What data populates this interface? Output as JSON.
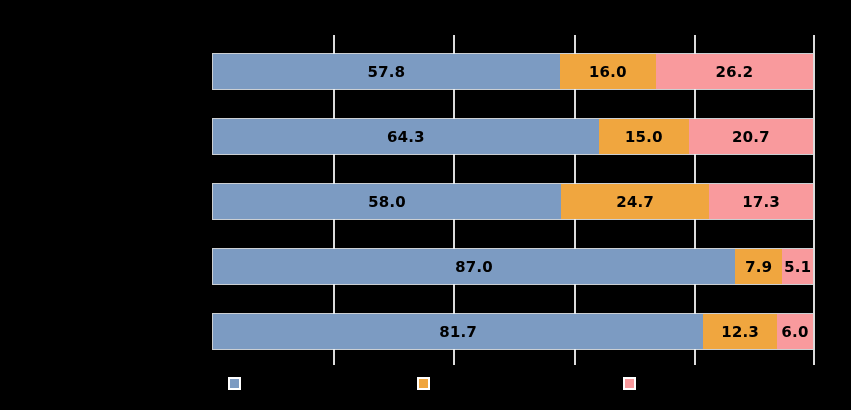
{
  "chart_data": {
    "type": "bar",
    "orientation": "horizontal",
    "stacked": true,
    "title": "",
    "xlabel": "",
    "ylabel": "",
    "xlim": [
      0,
      100
    ],
    "background_color": "#000000",
    "grid": true,
    "grid_color": "#DCDCDC",
    "gridlines_percent": [
      20,
      40,
      60,
      80,
      100
    ],
    "value_label_color": "#000000",
    "categories": [
      "",
      "",
      "",
      "",
      ""
    ],
    "series": [
      {
        "name": "blue",
        "color": "#7C9BC2",
        "values": [
          57.8,
          64.3,
          58.0,
          87.0,
          81.7
        ]
      },
      {
        "name": "orange",
        "color": "#F0A63F",
        "values": [
          16.0,
          15.0,
          24.7,
          7.9,
          12.3
        ]
      },
      {
        "name": "pink",
        "color": "#F99A9D",
        "values": [
          26.2,
          20.7,
          17.3,
          5.1,
          6.0
        ]
      }
    ],
    "rows": [
      {
        "segments": [
          {
            "value": 57.8,
            "label": "57.8"
          },
          {
            "value": 16.0,
            "label": "16.0"
          },
          {
            "value": 26.2,
            "label": "26.2"
          }
        ]
      },
      {
        "segments": [
          {
            "value": 64.3,
            "label": "64.3"
          },
          {
            "value": 15.0,
            "label": "15.0"
          },
          {
            "value": 20.7,
            "label": "20.7"
          }
        ]
      },
      {
        "segments": [
          {
            "value": 58.0,
            "label": "58.0"
          },
          {
            "value": 24.7,
            "label": "24.7"
          },
          {
            "value": 17.3,
            "label": "17.3"
          }
        ]
      },
      {
        "segments": [
          {
            "value": 87.0,
            "label": "87.0"
          },
          {
            "value": 7.9,
            "label": "7.9"
          },
          {
            "value": 5.1,
            "label": "5.1"
          }
        ]
      },
      {
        "segments": [
          {
            "value": 81.7,
            "label": "81.7"
          },
          {
            "value": 12.3,
            "label": "12.3"
          },
          {
            "value": 6.0,
            "label": "6.0"
          }
        ]
      }
    ],
    "legend": {
      "position": "bottom",
      "items": [
        {
          "name": "blue",
          "color": "#7C9BC2"
        },
        {
          "name": "orange",
          "color": "#F0A63F"
        },
        {
          "name": "pink",
          "color": "#F99A9D"
        }
      ]
    }
  }
}
